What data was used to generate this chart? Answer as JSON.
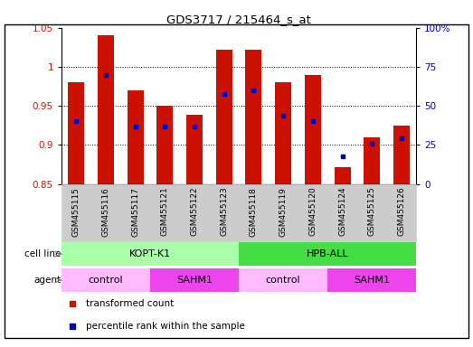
{
  "title": "GDS3717 / 215464_s_at",
  "samples": [
    "GSM455115",
    "GSM455116",
    "GSM455117",
    "GSM455121",
    "GSM455122",
    "GSM455123",
    "GSM455118",
    "GSM455119",
    "GSM455120",
    "GSM455124",
    "GSM455125",
    "GSM455126"
  ],
  "bar_values": [
    0.98,
    1.04,
    0.97,
    0.95,
    0.938,
    1.022,
    1.022,
    0.98,
    0.99,
    0.872,
    0.91,
    0.925
  ],
  "bar_bottom": 0.85,
  "blue_dot_values": [
    0.93,
    0.99,
    0.923,
    0.923,
    0.923,
    0.965,
    0.97,
    0.937,
    0.93,
    0.885,
    0.902,
    0.908
  ],
  "ylim_left": [
    0.85,
    1.05
  ],
  "ylim_right": [
    0,
    100
  ],
  "yticks_left": [
    0.85,
    0.9,
    0.95,
    1.0,
    1.05
  ],
  "yticks_left_labels": [
    "0.85",
    "0.9",
    "0.95",
    "1",
    "1.05"
  ],
  "yticks_right": [
    0,
    25,
    50,
    75,
    100
  ],
  "yticks_right_labels": [
    "0",
    "25",
    "50",
    "75",
    "100%"
  ],
  "cell_line_groups": [
    {
      "label": "KOPT-K1",
      "start": 0,
      "end": 6,
      "color": "#aaffaa"
    },
    {
      "label": "HPB-ALL",
      "start": 6,
      "end": 12,
      "color": "#44dd44"
    }
  ],
  "agent_groups": [
    {
      "label": "control",
      "start": 0,
      "end": 3,
      "color": "#ffbbff"
    },
    {
      "label": "SAHM1",
      "start": 3,
      "end": 6,
      "color": "#ee44ee"
    },
    {
      "label": "control",
      "start": 6,
      "end": 9,
      "color": "#ffbbff"
    },
    {
      "label": "SAHM1",
      "start": 9,
      "end": 12,
      "color": "#ee44ee"
    }
  ],
  "bar_color": "#cc1100",
  "dot_color": "#0000bb",
  "left_tick_color": "#cc1100",
  "right_tick_color": "#0000bb",
  "xlabel_bg_color": "#cccccc",
  "grid_yticks": [
    0.9,
    0.95,
    1.0
  ]
}
